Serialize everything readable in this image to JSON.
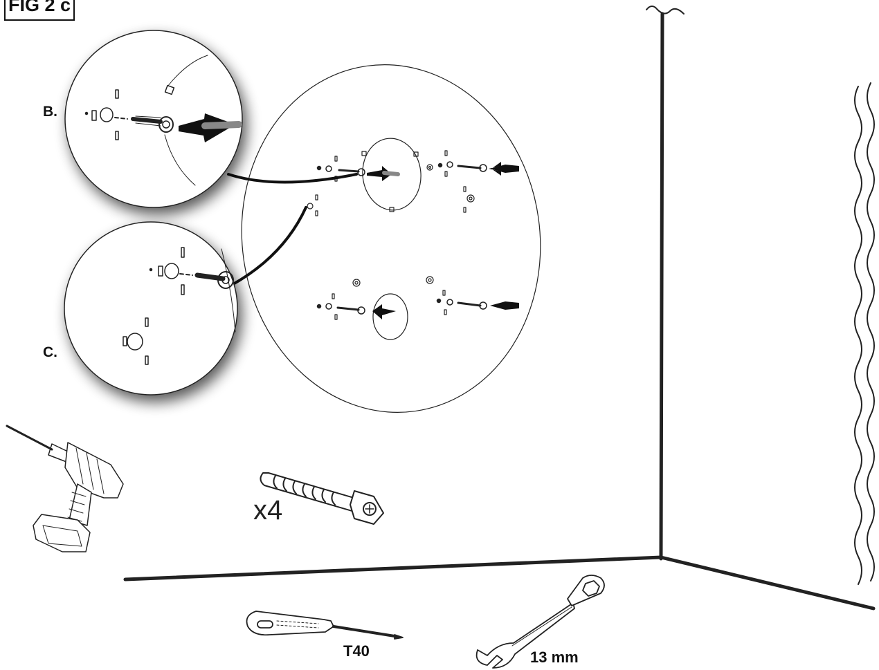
{
  "figure": {
    "label": "FIG 2 c",
    "callouts": [
      {
        "letter": "B."
      },
      {
        "letter": "C."
      }
    ],
    "screw_quantity": "x4",
    "tools": {
      "screwdriver_label": "T40",
      "wrench_label": "13 mm",
      "icons": [
        "drill-icon",
        "screw-icon",
        "screwdriver-icon",
        "wrench-icon"
      ]
    }
  }
}
